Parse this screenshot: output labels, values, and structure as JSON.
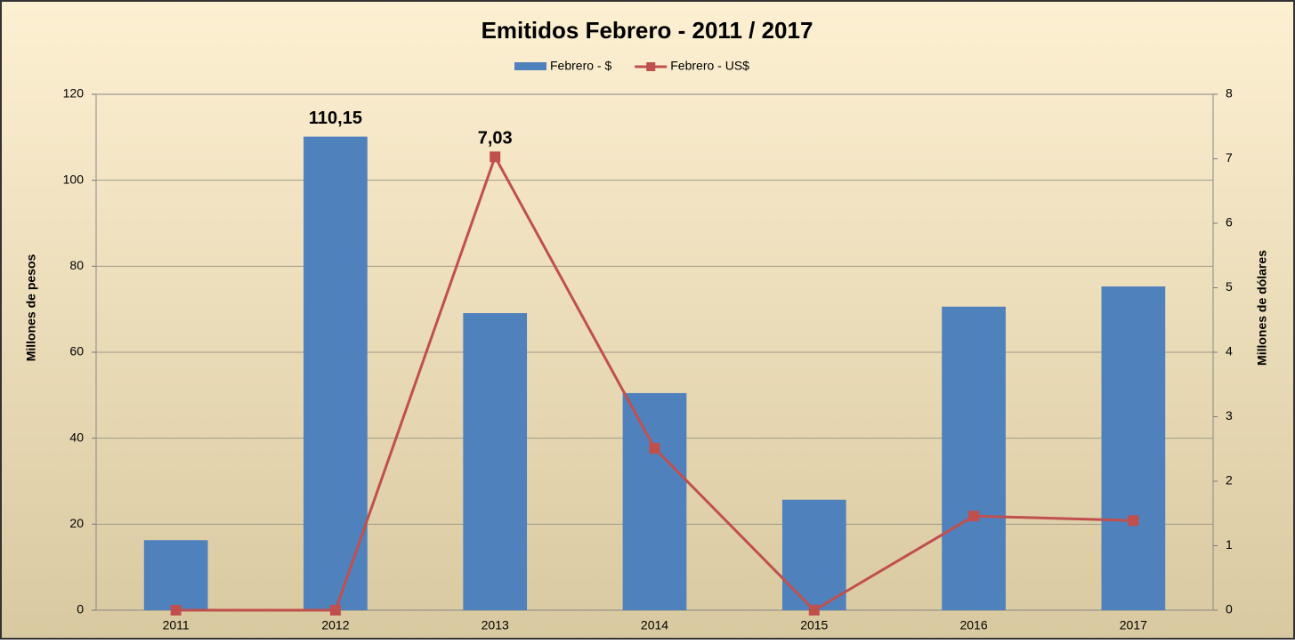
{
  "chart_data": {
    "type": "bar",
    "title": "Emitidos Febrero - 2011 / 2017",
    "categories": [
      "2011",
      "2012",
      "2013",
      "2014",
      "2015",
      "2016",
      "2017"
    ],
    "series": [
      {
        "name": "Febrero - $",
        "type": "bar",
        "color": "#4f81bd",
        "values": [
          16.3,
          110.15,
          69.1,
          50.5,
          25.7,
          70.6,
          75.3
        ],
        "value_labels": [
          null,
          "110,15",
          null,
          null,
          null,
          null,
          null
        ]
      },
      {
        "name": "Febrero - US$",
        "type": "line",
        "axis": "y2",
        "color": "#c0504d",
        "values": [
          0,
          0,
          7.03,
          2.51,
          0,
          1.46,
          1.39
        ],
        "value_labels": [
          null,
          null,
          "7,03",
          null,
          null,
          null,
          null
        ]
      }
    ],
    "ylabel": "Millones de pesos",
    "y2label": "Millones de dólares",
    "ylim": [
      0,
      120
    ],
    "yticks": [
      0,
      20,
      40,
      60,
      80,
      100,
      120
    ],
    "y2lim": [
      0,
      8
    ],
    "y2ticks": [
      0,
      1,
      2,
      3,
      4,
      5,
      6,
      7,
      8
    ],
    "grid": true,
    "legend": "top"
  }
}
